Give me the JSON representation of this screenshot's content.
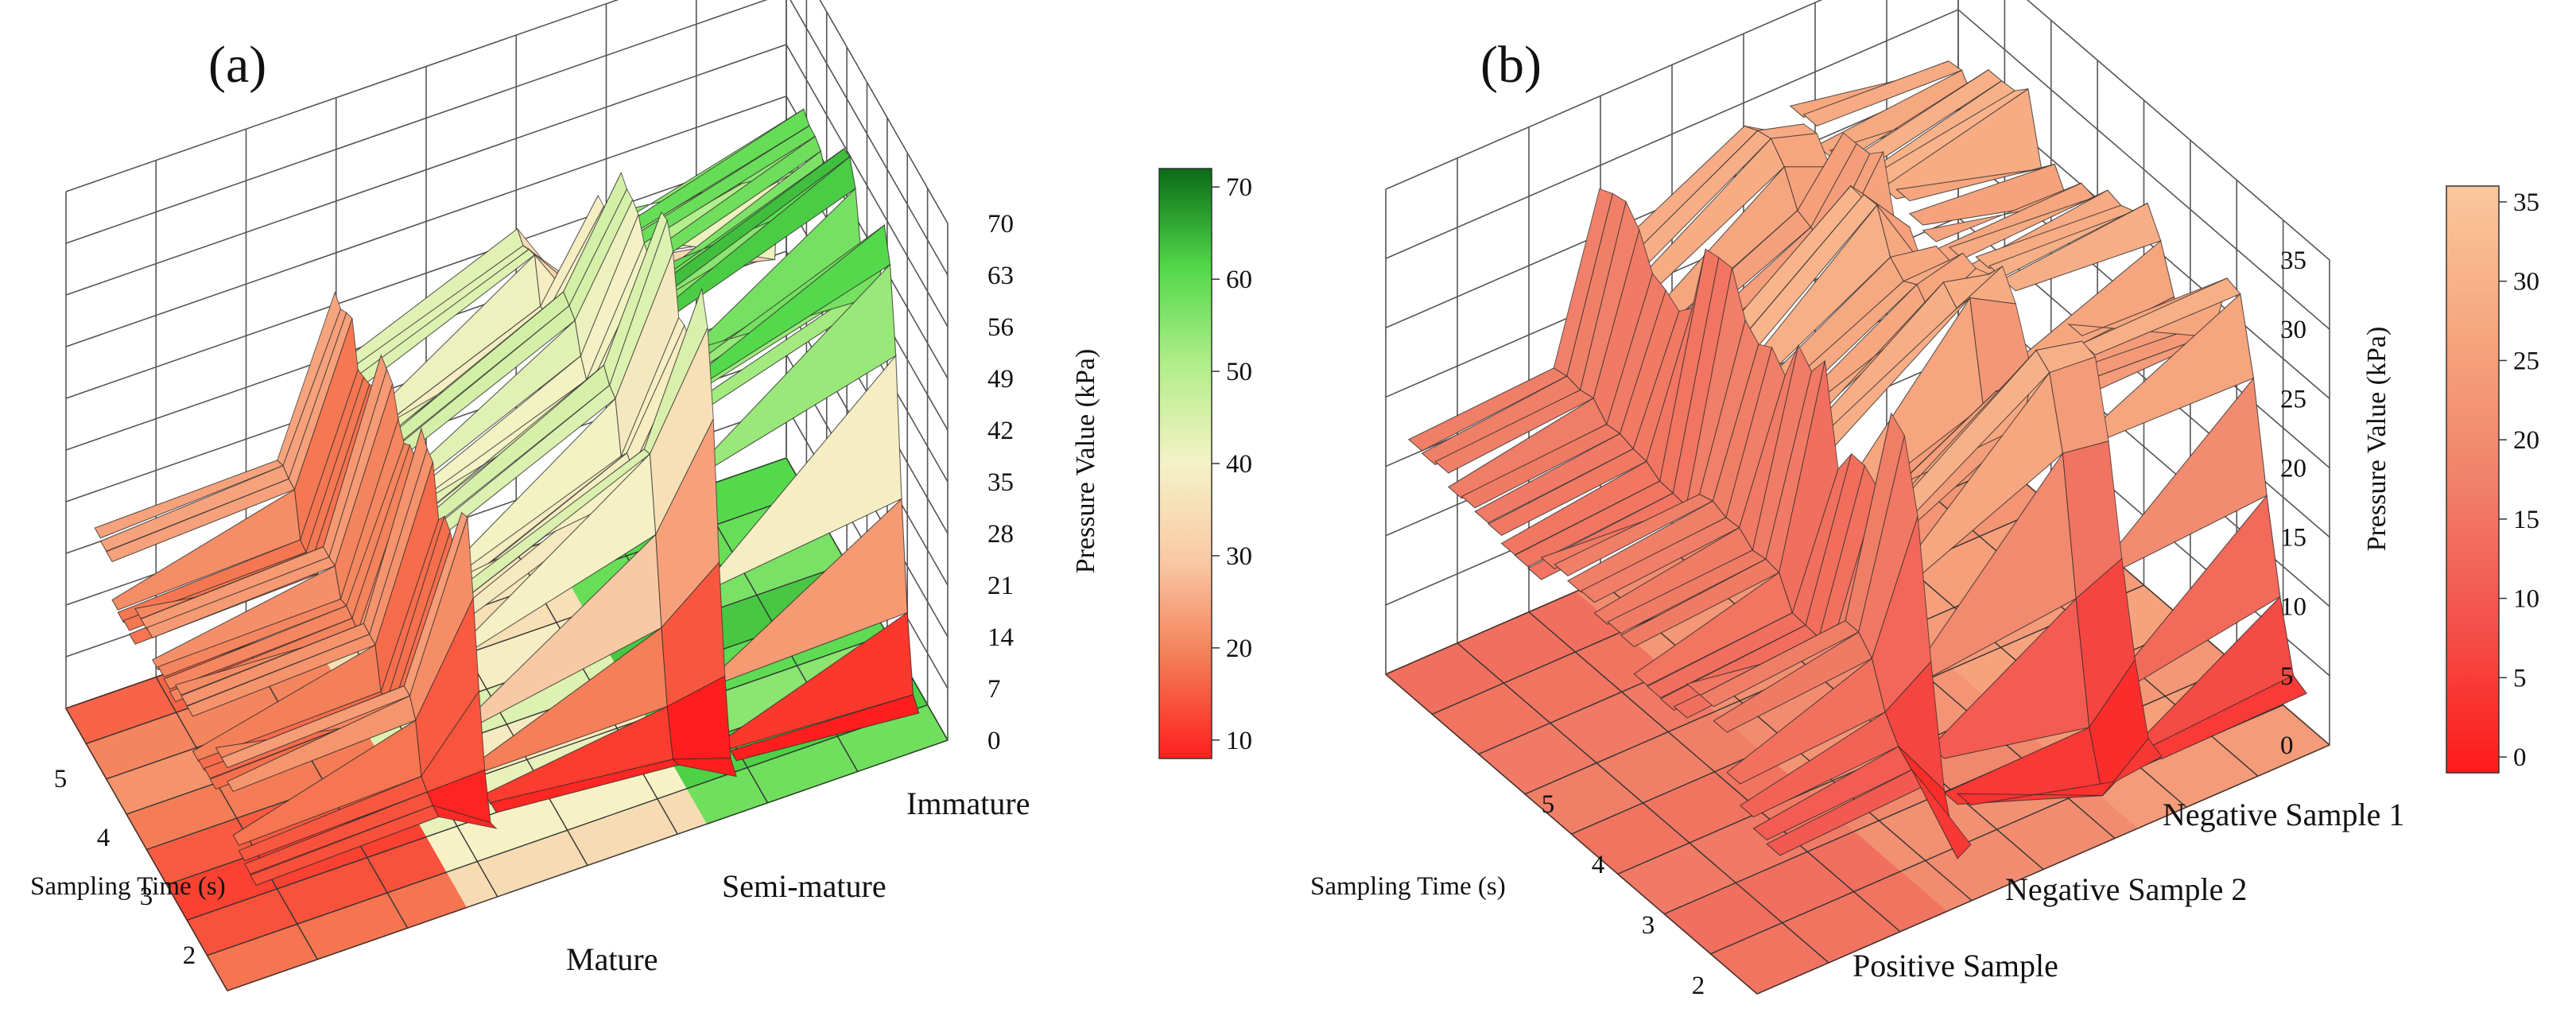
{
  "chart_data": [
    {
      "panel": "(a)",
      "type": "surface3d",
      "zlabel": "Pressure Value (kPa)",
      "ylabel": "Sampling Time (s)",
      "z_ticks": [
        "0",
        "7",
        "14",
        "21",
        "28",
        "35",
        "42",
        "49",
        "56",
        "63",
        "70"
      ],
      "zlim": [
        0,
        70
      ],
      "y_ticks": [
        "2",
        "3",
        "4",
        "5"
      ],
      "categories": [
        "Mature",
        "Semi-mature",
        "Immature"
      ],
      "series": [
        {
          "name": "Mature",
          "low": 14,
          "high": 24,
          "tail": [
            16,
            23,
            17,
            22,
            20,
            23,
            18,
            24
          ]
        },
        {
          "name": "Semi-mature",
          "low": 8,
          "high": 47,
          "tail": [
            40,
            44,
            38,
            45,
            41,
            46,
            39,
            44
          ]
        },
        {
          "name": "Immature",
          "low": 6,
          "high": 63,
          "tail": [
            55,
            61,
            52,
            62,
            56,
            59,
            50,
            33
          ]
        }
      ],
      "floor_levels": [
        [
          18,
          14,
          12,
          15,
          19,
          22,
          20,
          16
        ],
        [
          34,
          40,
          42,
          38,
          44,
          39,
          35,
          37
        ],
        [
          58,
          62,
          55,
          60,
          63,
          57,
          59,
          61
        ]
      ],
      "colorbar": {
        "ticks": [
          "10",
          "20",
          "30",
          "40",
          "50",
          "60",
          "70"
        ],
        "range": [
          8,
          72
        ]
      },
      "colorscale": [
        "#ff1e1e",
        "#f47b54",
        "#f8c9a4",
        "#f6f2c6",
        "#b2ee8a",
        "#52d84a",
        "#0a6a18"
      ]
    },
    {
      "panel": "(b)",
      "type": "surface3d",
      "zlabel": "Pressure Value (kPa)",
      "ylabel": "Sampling Time (s)",
      "z_ticks": [
        "0",
        "5",
        "10",
        "15",
        "20",
        "25",
        "30",
        "35"
      ],
      "zlim": [
        0,
        35
      ],
      "y_ticks": [
        "2",
        "3",
        "4",
        "5"
      ],
      "categories": [
        "Positive Sample",
        "Negative Sample 2",
        "Negative Sample 1"
      ],
      "series": [
        {
          "name": "Positive Sample",
          "low": 10,
          "high": 17,
          "tail": [
            15,
            17,
            14,
            16,
            17,
            15,
            16,
            17
          ]
        },
        {
          "name": "Negative Sample 2",
          "low": 3,
          "high": 30,
          "tail": [
            26,
            30,
            24,
            29,
            27,
            30,
            25,
            28
          ]
        },
        {
          "name": "Negative Sample 1",
          "low": 5,
          "high": 30,
          "tail": [
            27,
            30,
            24,
            29,
            28,
            26,
            30,
            27
          ]
        }
      ],
      "floor_levels": [
        [
          15,
          14,
          16,
          15,
          17,
          16,
          15,
          14
        ],
        [
          20,
          21,
          19,
          22,
          20,
          21,
          23,
          20
        ],
        [
          24,
          25,
          23,
          26,
          24,
          25,
          22,
          24
        ]
      ],
      "colorbar": {
        "ticks": [
          "0",
          "5",
          "10",
          "15",
          "20",
          "25",
          "30",
          "35"
        ],
        "range": [
          -1,
          36
        ]
      },
      "colorscale": [
        "#ff1a1a",
        "#f3504a",
        "#f0826a",
        "#f6a67f",
        "#fac79c"
      ]
    }
  ]
}
